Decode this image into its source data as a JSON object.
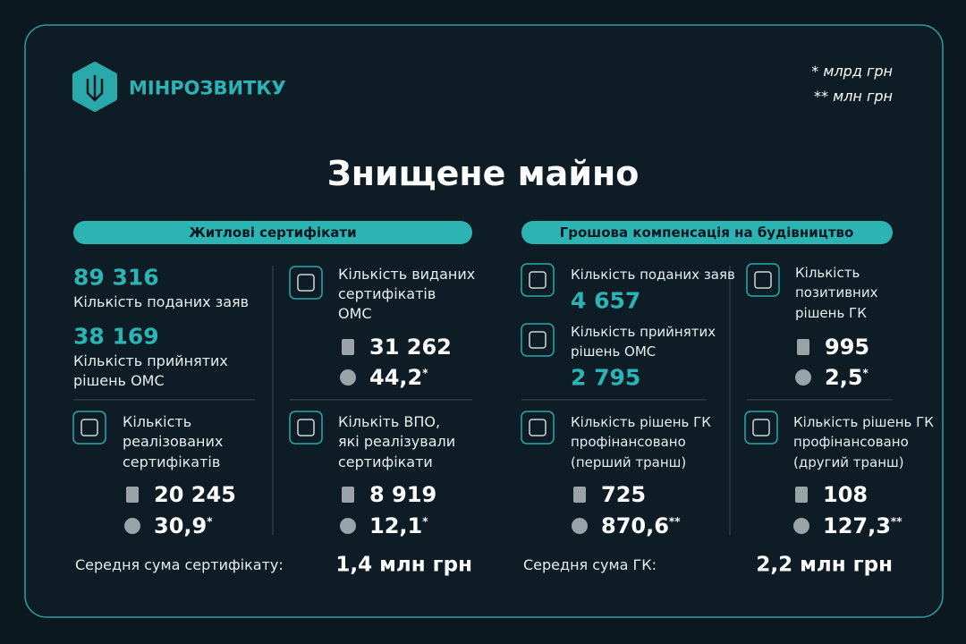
{
  "header": {
    "brand": "МІНРОЗВИТКУ",
    "notes": [
      "* млрд грн",
      "** млн грн"
    ],
    "title": "Знищене майно"
  },
  "sections": [
    {
      "pill": "Житлові сертифікати",
      "items": [
        {
          "value": "89 316",
          "label": [
            "Кількість поданих заяв"
          ]
        },
        {
          "value": "38 169",
          "label": [
            "Кількість прийнятих",
            "рішень ОМС"
          ]
        },
        {
          "label": [
            "Кількість виданих",
            "сертифікатів",
            "ОМС"
          ],
          "count": "31 262",
          "amount": "44,2",
          "note": "*"
        },
        {
          "label": [
            "Кількість",
            "реалізованих",
            "сертифікатів"
          ],
          "count": "20 245",
          "amount": "30,9",
          "note": "*"
        },
        {
          "label": [
            "Кількіть ВПО,",
            "які реалізували",
            "сертифікати"
          ],
          "count": "8 919",
          "amount": "12,1",
          "note": "*"
        }
      ],
      "footer": {
        "label": "Середня сума сертифікату:",
        "value": "1,4 млн грн"
      }
    },
    {
      "pill": "Грошова компенсація на будівництво",
      "items": [
        {
          "label": [
            "Кількість поданих заяв"
          ],
          "value": "4 657"
        },
        {
          "label": [
            "Кількість прийнятих",
            "рішень ОМС"
          ],
          "value": "2 795"
        },
        {
          "label": [
            "Кількість",
            "позитивних",
            "рішень ГК"
          ],
          "count": "995",
          "amount": "2,5",
          "note": "*"
        },
        {
          "label": [
            "Кількість рішень ГК",
            "профінансовано",
            "(перший транш)"
          ],
          "count": "725",
          "amount": "870,6",
          "note": "**"
        },
        {
          "label": [
            "Кількість рішень ГК",
            "профінансовано",
            "(другий транш)"
          ],
          "count": "108",
          "amount": "127,3",
          "note": "**"
        }
      ],
      "footer": {
        "label": "Середня сума ГК:",
        "value": "2,2 млн грн"
      }
    }
  ]
}
